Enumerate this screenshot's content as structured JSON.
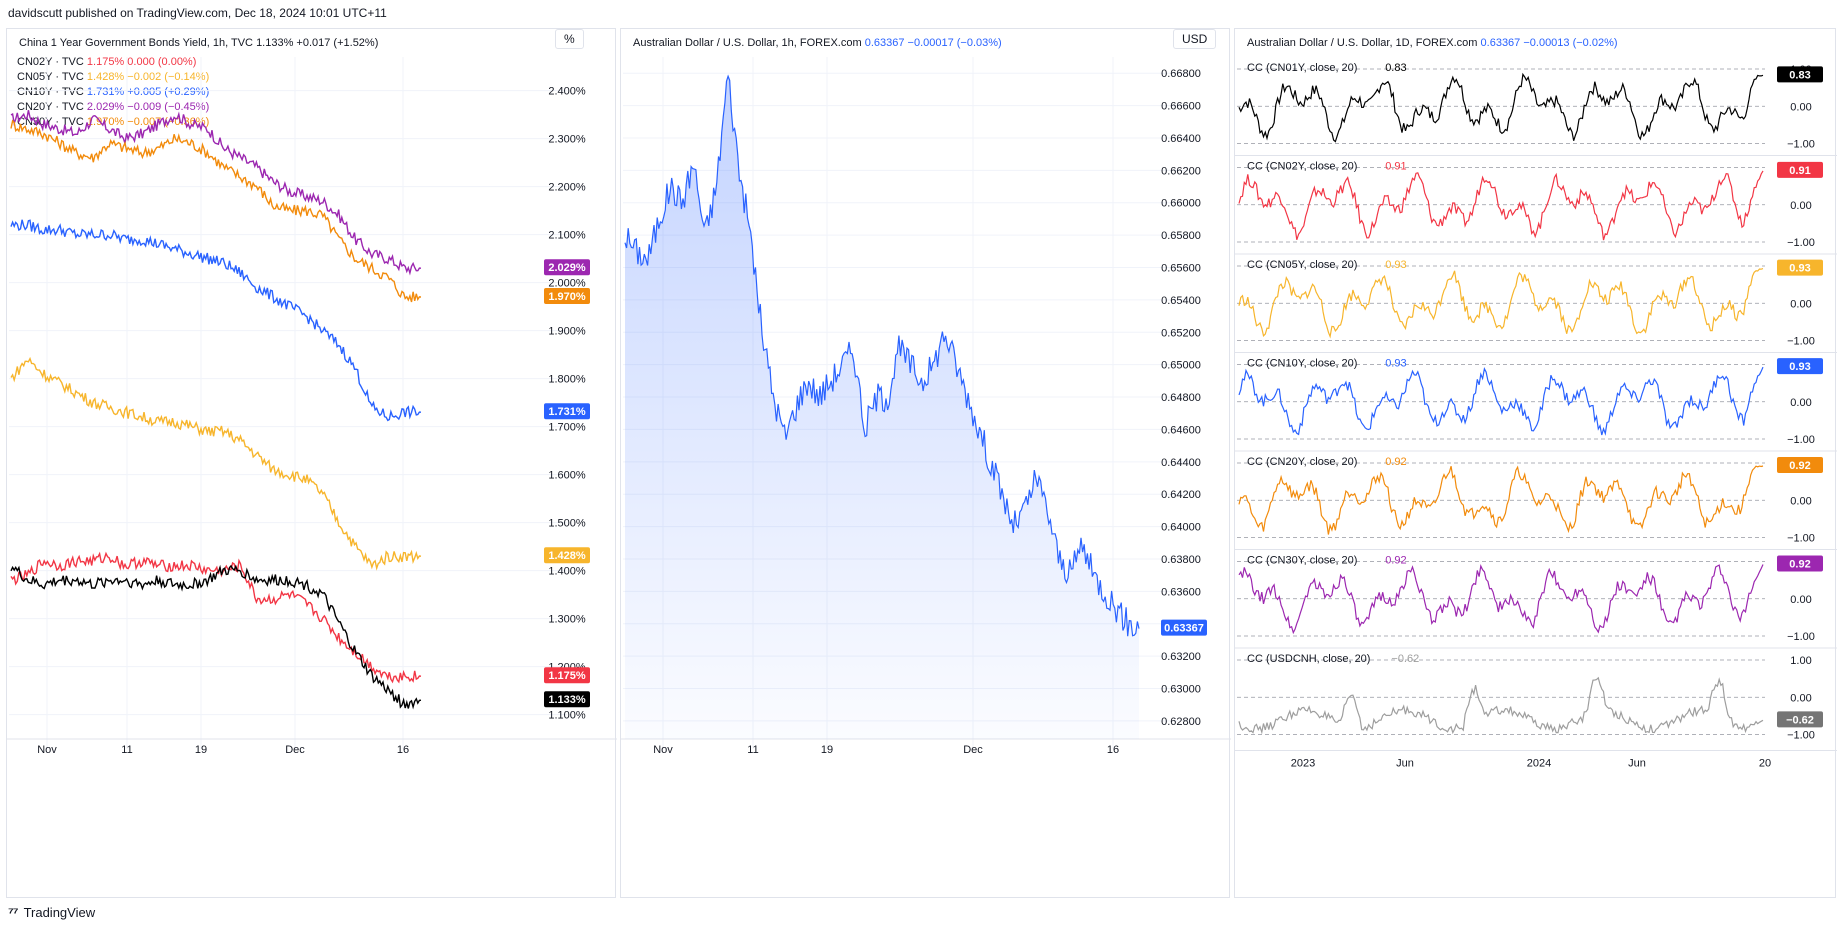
{
  "header": {
    "published": "davidscutt published on TradingView.com, Dec 18, 2024 10:01 UTC+11"
  },
  "footer": {
    "brand": "TradingView",
    "logo": "tv-logo-icon"
  },
  "colors": {
    "cn01y": "#000000",
    "cn02y": "#f23645",
    "cn05y": "#f7b52c",
    "cn10y": "#2962ff",
    "cn20y": "#f28b0c",
    "cn30y": "#9c27b0",
    "usdcnh": "#9e9e9e",
    "aud": "#2962ff",
    "grid": "#f0f3fa"
  },
  "chart_data": [
    {
      "type": "line",
      "title": "China 1 Year Government Bonds Yield, 1h, TVC",
      "title_value": "1.133%  +0.017 (+1.52%)",
      "unit_label": "%",
      "x_ticks": [
        "Nov",
        "11",
        "19",
        "Dec",
        "16"
      ],
      "y_ticks": [
        "2.400%",
        "2.300%",
        "2.200%",
        "2.100%",
        "2.000%",
        "1.900%",
        "1.800%",
        "1.700%",
        "1.600%",
        "1.500%",
        "1.400%",
        "1.300%",
        "1.200%",
        "1.100%"
      ],
      "ylim": [
        1.07,
        2.47
      ],
      "legend": [
        {
          "name": "CN02Y · TVC",
          "value": "1.175%",
          "change": "0.000 (0.00%)",
          "color_key": "cn02y"
        },
        {
          "name": "CN05Y · TVC",
          "value": "1.428%",
          "change": "−0.002 (−0.14%)",
          "color_key": "cn05y"
        },
        {
          "name": "CN10Y · TVC",
          "value": "1.731%",
          "change": "+0.005 (+0.29%)",
          "color_key": "cn10y"
        },
        {
          "name": "CN20Y · TVC",
          "value": "2.029%",
          "change": "−0.009 (−0.45%)",
          "color_key": "cn30y"
        },
        {
          "name": "CN30Y · TVC",
          "value": "1.970%",
          "change": "−0.007 (−0.36%)",
          "color_key": "cn20y"
        }
      ],
      "series": [
        {
          "name": "CN20Y",
          "color_key": "cn30y",
          "last_label": "2.029%",
          "values": [
            2.34,
            2.35,
            2.33,
            2.32,
            2.31,
            2.34,
            2.32,
            2.3,
            2.31,
            2.33,
            2.35,
            2.33,
            2.32,
            2.28,
            2.26,
            2.24,
            2.21,
            2.19,
            2.18,
            2.17,
            2.14,
            2.09,
            2.06,
            2.05,
            2.03,
            2.03
          ]
        },
        {
          "name": "CN30Y",
          "color_key": "cn20y",
          "last_label": "1.970%",
          "values": [
            2.33,
            2.32,
            2.31,
            2.29,
            2.27,
            2.26,
            2.29,
            2.28,
            2.27,
            2.28,
            2.3,
            2.29,
            2.27,
            2.24,
            2.22,
            2.2,
            2.16,
            2.15,
            2.15,
            2.14,
            2.09,
            2.05,
            2.03,
            2.01,
            1.97,
            1.97
          ]
        },
        {
          "name": "CN10Y",
          "color_key": "cn10y",
          "last_label": "1.731%",
          "values": [
            2.12,
            2.12,
            2.11,
            2.11,
            2.1,
            2.1,
            2.1,
            2.09,
            2.09,
            2.08,
            2.07,
            2.06,
            2.05,
            2.04,
            2.02,
            1.99,
            1.97,
            1.95,
            1.93,
            1.9,
            1.87,
            1.82,
            1.74,
            1.72,
            1.73,
            1.73
          ]
        },
        {
          "name": "CN05Y",
          "color_key": "cn05y",
          "last_label": "1.428%",
          "values": [
            1.8,
            1.84,
            1.81,
            1.79,
            1.77,
            1.75,
            1.74,
            1.73,
            1.72,
            1.71,
            1.71,
            1.7,
            1.69,
            1.69,
            1.67,
            1.64,
            1.61,
            1.6,
            1.59,
            1.56,
            1.5,
            1.45,
            1.41,
            1.43,
            1.43,
            1.43
          ]
        },
        {
          "name": "CN02Y",
          "color_key": "cn02y",
          "last_label": "1.175%",
          "values": [
            1.38,
            1.39,
            1.42,
            1.41,
            1.42,
            1.42,
            1.43,
            1.41,
            1.42,
            1.41,
            1.41,
            1.41,
            1.4,
            1.4,
            1.41,
            1.34,
            1.34,
            1.35,
            1.33,
            1.3,
            1.26,
            1.23,
            1.2,
            1.18,
            1.18,
            1.18
          ]
        },
        {
          "name": "CN01Y",
          "color_key": "cn01y",
          "last_label": "1.133%",
          "values": [
            1.41,
            1.38,
            1.37,
            1.38,
            1.38,
            1.37,
            1.38,
            1.38,
            1.37,
            1.38,
            1.37,
            1.37,
            1.38,
            1.4,
            1.4,
            1.38,
            1.38,
            1.38,
            1.37,
            1.35,
            1.29,
            1.23,
            1.18,
            1.15,
            1.12,
            1.13
          ]
        }
      ]
    },
    {
      "type": "area",
      "title": "Australian Dollar / U.S. Dollar, 1h, FOREX.com",
      "title_value": "0.63367  −0.00017 (−0.03%)",
      "unit_label": "USD",
      "x_ticks": [
        "Nov",
        "11",
        "19",
        "Dec",
        "16"
      ],
      "y_ticks": [
        "0.66800",
        "0.66600",
        "0.66400",
        "0.66200",
        "0.66000",
        "0.65800",
        "0.65600",
        "0.65400",
        "0.65200",
        "0.65000",
        "0.64800",
        "0.64600",
        "0.64400",
        "0.64200",
        "0.64000",
        "0.63800",
        "0.63600",
        "0.63400",
        "0.63200",
        "0.63000",
        "0.62800"
      ],
      "ylim": [
        0.6275,
        0.669
      ],
      "last_label": "0.63367",
      "series": [
        {
          "name": "AUDUSD",
          "color_key": "aud",
          "values": [
            0.658,
            0.657,
            0.6565,
            0.659,
            0.661,
            0.66,
            0.6625,
            0.658,
            0.661,
            0.668,
            0.662,
            0.658,
            0.652,
            0.648,
            0.6455,
            0.6475,
            0.649,
            0.648,
            0.649,
            0.65,
            0.651,
            0.646,
            0.648,
            0.648,
            0.651,
            0.65,
            0.649,
            0.65,
            0.652,
            0.65,
            0.648,
            0.646,
            0.644,
            0.642,
            0.64,
            0.641,
            0.643,
            0.641,
            0.638,
            0.637,
            0.639,
            0.637,
            0.636,
            0.635,
            0.634,
            0.6337
          ]
        }
      ]
    },
    {
      "type": "line",
      "title": "Australian Dollar / U.S. Dollar, 1D, FOREX.com",
      "title_value": "0.63367  −0.00013 (−0.02%)",
      "x_ticks": [
        "2023",
        "Jun",
        "2024",
        "Jun",
        "20"
      ],
      "subpanes": [
        {
          "label": "CC (CN01Y, close, 20)",
          "value": "0.83",
          "color_key": "cn01y",
          "y_ticks": [
            "1.00",
            "0.00",
            "−1.00"
          ],
          "last_label": "0.83"
        },
        {
          "label": "CC (CN02Y, close, 20)",
          "value": "0.91",
          "color_key": "cn02y",
          "y_ticks": [
            "1.00",
            "0.00",
            "−1.00"
          ],
          "last_label": "0.91"
        },
        {
          "label": "CC (CN05Y, close, 20)",
          "value": "0.93",
          "color_key": "cn05y",
          "y_ticks": [
            "1.00",
            "0.00",
            "−1.00"
          ],
          "last_label": "0.93"
        },
        {
          "label": "CC (CN10Y, close, 20)",
          "value": "0.93",
          "color_key": "cn10y",
          "y_ticks": [
            "1.00",
            "0.00",
            "−1.00"
          ],
          "last_label": "0.93"
        },
        {
          "label": "CC (CN20Y, close, 20)",
          "value": "0.92",
          "color_key": "cn20y",
          "y_ticks": [
            "1.00",
            "0.00",
            "−1.00"
          ],
          "last_label": "0.92"
        },
        {
          "label": "CC (CN30Y, close, 20)",
          "value": "0.92",
          "color_key": "cn30y",
          "y_ticks": [
            "1.00",
            "0.00",
            "−1.00"
          ],
          "last_label": "0.92"
        },
        {
          "label": "CC (USDCNH, close, 20)",
          "value": "−0.62",
          "color_key": "usdcnh",
          "y_ticks": [
            "1.00",
            "0.00",
            "−1.00"
          ],
          "last_label": "−0.62"
        }
      ]
    }
  ]
}
